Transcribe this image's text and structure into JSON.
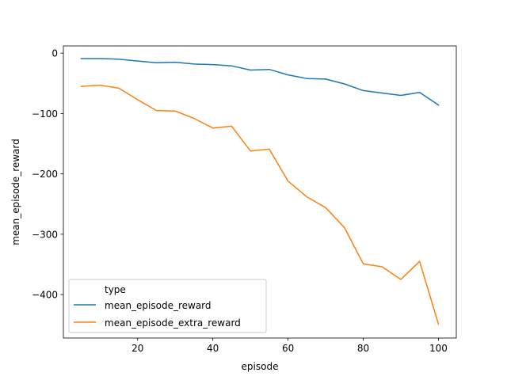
{
  "chart_data": {
    "type": "line",
    "title": "",
    "xlabel": "episode",
    "ylabel": "mean_episode_reward",
    "xlim": [
      0.25,
      104.75
    ],
    "ylim": [
      -472,
      12
    ],
    "xticks": [
      20,
      40,
      60,
      80,
      100
    ],
    "yticks": [
      0,
      -100,
      -200,
      -300,
      -400
    ],
    "ytick_labels": [
      "0",
      "−100",
      "−200",
      "−300",
      "−400"
    ],
    "grid": false,
    "legend": {
      "title": "type",
      "placement": "lower-left"
    },
    "x": [
      5,
      10,
      15,
      20,
      25,
      30,
      35,
      40,
      45,
      50,
      55,
      60,
      65,
      70,
      75,
      80,
      85,
      90,
      95,
      100
    ],
    "series": [
      {
        "name": "mean_episode_reward",
        "color": "#1f77b4",
        "values": [
          -9,
          -9,
          -10,
          -13,
          -16,
          -15,
          -18,
          -19,
          -21,
          -28,
          -27,
          -36,
          -42,
          -43,
          -51,
          -62,
          -66,
          -70,
          -65,
          -86
        ]
      },
      {
        "name": "mean_episode_extra_reward",
        "color": "#ff7f0e",
        "values": [
          -55,
          -53,
          -58,
          -77,
          -95,
          -96,
          -108,
          -124,
          -121,
          -162,
          -159,
          -212,
          -238,
          -256,
          -289,
          -349,
          -354,
          -375,
          -345,
          -449
        ]
      }
    ]
  }
}
